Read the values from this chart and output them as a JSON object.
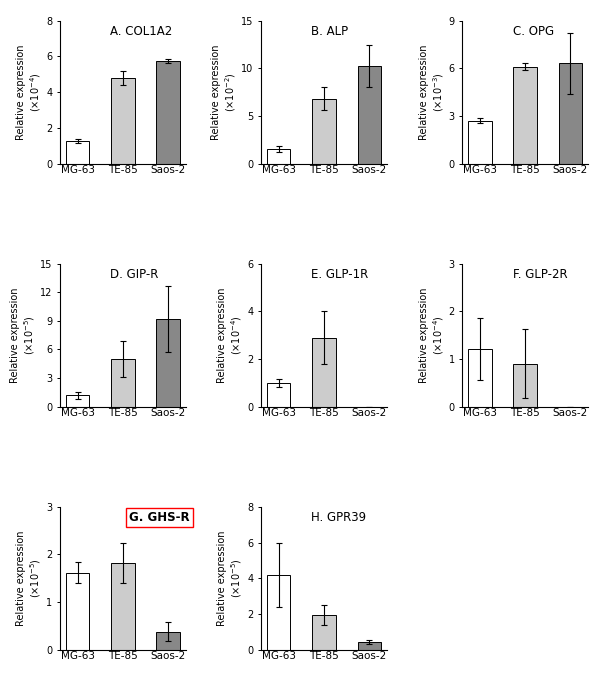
{
  "subplots": [
    {
      "label": "A. COL1A2",
      "ylabel_exp": "-4",
      "ylim": [
        0,
        8
      ],
      "yticks": [
        0,
        2,
        4,
        6,
        8
      ],
      "values": [
        1.25,
        4.8,
        5.75
      ],
      "errors": [
        0.12,
        0.38,
        0.12
      ],
      "bold_label": false,
      "red_box": false
    },
    {
      "label": "B. ALP",
      "ylabel_exp": "-2",
      "ylim": [
        0,
        15
      ],
      "yticks": [
        0,
        5,
        10,
        15
      ],
      "values": [
        1.5,
        6.8,
        10.2
      ],
      "errors": [
        0.3,
        1.2,
        2.2
      ],
      "bold_label": false,
      "red_box": false
    },
    {
      "label": "C. OPG",
      "ylabel_exp": "-3",
      "ylim": [
        0,
        9
      ],
      "yticks": [
        0,
        3,
        6,
        9
      ],
      "values": [
        2.7,
        6.1,
        6.3
      ],
      "errors": [
        0.18,
        0.2,
        1.9
      ],
      "bold_label": false,
      "red_box": false
    },
    {
      "label": "D. GIP-R",
      "ylabel_exp": "-5",
      "ylim": [
        0,
        15
      ],
      "yticks": [
        0,
        3,
        6,
        9,
        12,
        15
      ],
      "values": [
        1.2,
        5.0,
        9.2
      ],
      "errors": [
        0.35,
        1.9,
        3.5
      ],
      "bold_label": false,
      "red_box": false
    },
    {
      "label": "E. GLP-1R",
      "ylabel_exp": "-4",
      "ylim": [
        0,
        6
      ],
      "yticks": [
        0,
        2,
        4,
        6
      ],
      "values": [
        1.0,
        2.9,
        0.0
      ],
      "errors": [
        0.18,
        1.1,
        0.0
      ],
      "bold_label": false,
      "red_box": false
    },
    {
      "label": "F. GLP-2R",
      "ylabel_exp": "-4",
      "ylim": [
        0,
        3
      ],
      "yticks": [
        0,
        1,
        2,
        3
      ],
      "values": [
        1.2,
        0.9,
        0.0
      ],
      "errors": [
        0.65,
        0.72,
        0.0
      ],
      "bold_label": false,
      "red_box": false
    },
    {
      "label": "G. GHS-R",
      "ylabel_exp": "-5",
      "ylim": [
        0,
        3
      ],
      "yticks": [
        0,
        1,
        2,
        3
      ],
      "values": [
        1.62,
        1.82,
        0.38
      ],
      "errors": [
        0.22,
        0.42,
        0.2
      ],
      "bold_label": true,
      "red_box": true
    },
    {
      "label": "H. GPR39",
      "ylabel_exp": "-5",
      "ylim": [
        0,
        8
      ],
      "yticks": [
        0,
        2,
        4,
        6,
        8
      ],
      "values": [
        4.2,
        1.95,
        0.45
      ],
      "errors": [
        1.8,
        0.55,
        0.12
      ],
      "bold_label": false,
      "red_box": false
    }
  ],
  "categories": [
    "MG-63",
    "TE-85",
    "Saos-2"
  ],
  "ylabel_text": "Relative expression",
  "background_color": "#ffffff",
  "bar_width": 0.52,
  "edgecolor": "#000000",
  "bar_colors": [
    "#ffffff",
    "#cccccc",
    "#888888"
  ],
  "title_fontsize": 8.5,
  "tick_fontsize": 7,
  "ylabel_fontsize": 7,
  "xlabel_fontsize": 7.5
}
